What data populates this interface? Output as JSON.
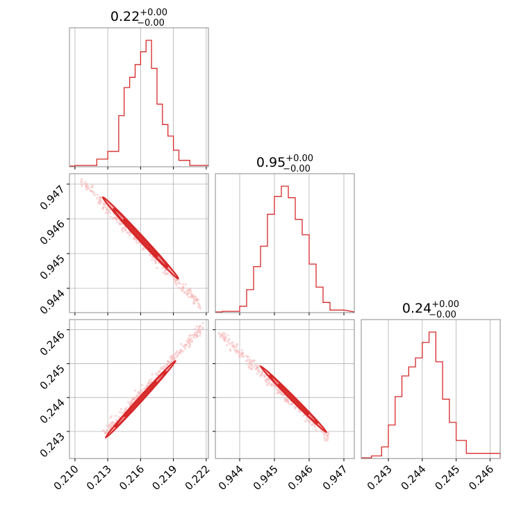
{
  "chart_data": {
    "type": "corner",
    "color": "#d62728",
    "fill_color": "#f2a7a9",
    "grid": true,
    "parameters": [
      {
        "title_value": "0.22",
        "title_plus": "+0.00",
        "title_minus": "−0.00",
        "range": [
          0.2095,
          0.2222
        ],
        "ticks": [
          0.21,
          0.213,
          0.216,
          0.219,
          0.222
        ],
        "tick_labels": [
          "0.210",
          "0.213",
          "0.216",
          "0.219",
          "0.222"
        ],
        "histogram_edges": [
          0.21,
          0.212,
          0.213,
          0.214,
          0.2145,
          0.215,
          0.2155,
          0.216,
          0.2165,
          0.217,
          0.2175,
          0.218,
          0.2185,
          0.219,
          0.2195,
          0.2205,
          0.2222
        ],
        "histogram_counts": [
          0.01,
          0.06,
          0.12,
          0.4,
          0.62,
          0.7,
          0.8,
          0.9,
          0.99,
          0.77,
          0.49,
          0.33,
          0.24,
          0.13,
          0.05,
          0.01
        ]
      },
      {
        "title_value": "0.95",
        "title_plus": "+0.00",
        "title_minus": "−0.00",
        "range": [
          0.9433,
          0.9473
        ],
        "ticks": [
          0.944,
          0.945,
          0.946,
          0.947
        ],
        "tick_labels": [
          "0.944",
          "0.945",
          "0.946",
          "0.947"
        ],
        "histogram_edges": [
          0.9435,
          0.944,
          0.9442,
          0.9444,
          0.9446,
          0.9448,
          0.945,
          0.9452,
          0.9454,
          0.9456,
          0.9458,
          0.946,
          0.9462,
          0.9464,
          0.9466,
          0.947
        ],
        "histogram_counts": [
          0.01,
          0.05,
          0.18,
          0.36,
          0.52,
          0.77,
          0.91,
          0.99,
          0.9,
          0.73,
          0.61,
          0.38,
          0.2,
          0.08,
          0.02
        ]
      },
      {
        "title_value": "0.24",
        "title_plus": "+0.00",
        "title_minus": "−0.00",
        "range": [
          0.2422,
          0.2463
        ],
        "ticks": [
          0.243,
          0.244,
          0.245,
          0.246
        ],
        "tick_labels": [
          "0.243",
          "0.244",
          "0.245",
          "0.246"
        ],
        "histogram_edges": [
          0.2425,
          0.2428,
          0.243,
          0.2432,
          0.2434,
          0.2436,
          0.2438,
          0.244,
          0.2442,
          0.2444,
          0.2446,
          0.2448,
          0.245,
          0.2453,
          0.2463
        ],
        "histogram_counts": [
          0.02,
          0.09,
          0.26,
          0.48,
          0.64,
          0.71,
          0.78,
          0.9,
          0.98,
          0.75,
          0.46,
          0.28,
          0.14,
          0.04
        ]
      }
    ],
    "pairs": [
      {
        "x_param": 0,
        "y_param": 1,
        "center": [
          0.216,
          0.94545
        ],
        "contour_half_length": 0.00345,
        "contour_half_width": 7.5e-05,
        "slope": -0.34,
        "scatter_extent": [
          [
            0.2105,
            0.9471
          ],
          [
            0.2215,
            0.9435
          ]
        ]
      },
      {
        "x_param": 0,
        "y_param": 2,
        "center": [
          0.216,
          0.24395
        ],
        "contour_half_length": 0.0032,
        "contour_half_width": 5e-05,
        "slope": 0.355,
        "scatter_extent": [
          [
            0.2126,
            0.2429
          ],
          [
            0.2217,
            0.2461
          ]
        ]
      },
      {
        "x_param": 1,
        "y_param": 2,
        "center": [
          0.94555,
          0.24395
        ],
        "contour_half_length": 0.00095,
        "contour_half_width": 5e-05,
        "slope": -1.029,
        "scatter_extent": [
          [
            0.9434,
            0.2459
          ],
          [
            0.9466,
            0.2428
          ]
        ]
      }
    ],
    "contour_levels": [
      1.0,
      0.72,
      0.45
    ]
  }
}
